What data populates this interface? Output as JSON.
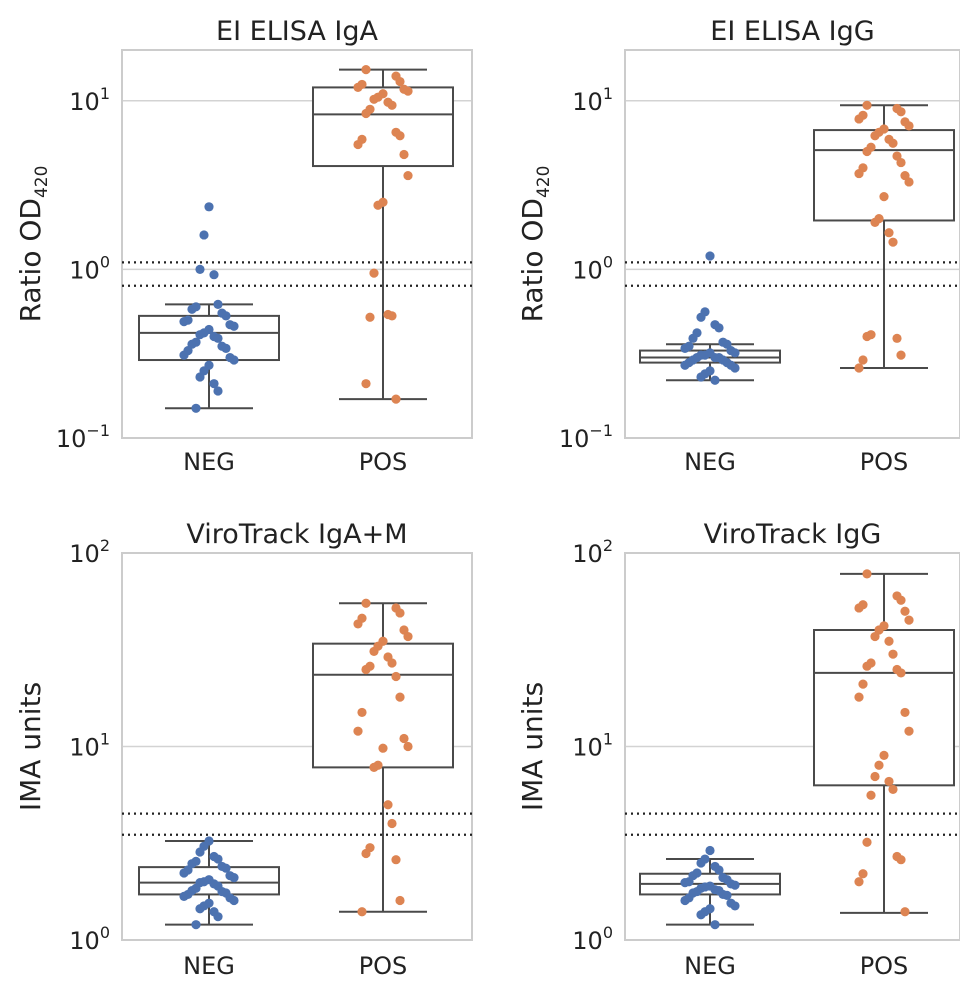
{
  "chart_data": [
    {
      "type": "box",
      "title": "EI ELISA IgA",
      "ylabel": {
        "main": "Ratio OD",
        "sub": "420"
      },
      "yscale": "log",
      "ylim": [
        0.1,
        20
      ],
      "yticks": [
        {
          "base": "10",
          "exp": "−1",
          "value": 0.1
        },
        {
          "base": "10",
          "exp": "0",
          "value": 1
        },
        {
          "base": "10",
          "exp": "1",
          "value": 10
        }
      ],
      "grid": true,
      "cutoffs": [
        1.1,
        0.8
      ],
      "categories": [
        "NEG",
        "POS"
      ],
      "boxes": [
        {
          "category": "NEG",
          "whislo": 0.15,
          "q1": 0.29,
          "median": 0.42,
          "q3": 0.53,
          "whishi": 0.62
        },
        {
          "category": "POS",
          "whislo": 0.17,
          "q1": 4.1,
          "median": 8.3,
          "q3": 12.0,
          "whishi": 15.3
        }
      ],
      "points": [
        {
          "category": "NEG",
          "color": "#4c72b0",
          "values": [
            2.35,
            1.6,
            1.0,
            0.93,
            0.62,
            0.6,
            0.58,
            0.55,
            0.53,
            0.5,
            0.49,
            0.47,
            0.46,
            0.44,
            0.42,
            0.41,
            0.4,
            0.39,
            0.37,
            0.36,
            0.35,
            0.34,
            0.33,
            0.31,
            0.3,
            0.29,
            0.27,
            0.25,
            0.23,
            0.21,
            0.19,
            0.15
          ]
        },
        {
          "category": "POS",
          "color": "#dd8452",
          "values": [
            15.3,
            14.0,
            13.0,
            12.5,
            12.0,
            11.7,
            11.4,
            11.0,
            10.5,
            10.2,
            9.8,
            9.4,
            8.9,
            8.4,
            6.5,
            6.2,
            5.9,
            5.5,
            4.8,
            3.6,
            2.5,
            2.4,
            0.95,
            0.54,
            0.53,
            0.52,
            0.21,
            0.17
          ]
        }
      ]
    },
    {
      "type": "box",
      "title": "EI ELISA IgG",
      "ylabel": {
        "main": "Ratio OD",
        "sub": "420"
      },
      "yscale": "log",
      "ylim": [
        0.1,
        20
      ],
      "yticks": [
        {
          "base": "10",
          "exp": "−1",
          "value": 0.1
        },
        {
          "base": "10",
          "exp": "0",
          "value": 1
        },
        {
          "base": "10",
          "exp": "1",
          "value": 10
        }
      ],
      "grid": true,
      "cutoffs": [
        1.1,
        0.8
      ],
      "categories": [
        "NEG",
        "POS"
      ],
      "boxes": [
        {
          "category": "NEG",
          "whislo": 0.22,
          "q1": 0.28,
          "median": 0.3,
          "q3": 0.33,
          "whishi": 0.36
        },
        {
          "category": "POS",
          "whislo": 0.26,
          "q1": 1.95,
          "median": 5.1,
          "q3": 6.7,
          "whishi": 9.4
        }
      ],
      "points": [
        {
          "category": "NEG",
          "color": "#4c72b0",
          "values": [
            1.2,
            0.56,
            0.52,
            0.47,
            0.45,
            0.42,
            0.39,
            0.37,
            0.36,
            0.35,
            0.34,
            0.33,
            0.32,
            0.32,
            0.31,
            0.31,
            0.3,
            0.3,
            0.3,
            0.29,
            0.29,
            0.28,
            0.28,
            0.27,
            0.27,
            0.26,
            0.25,
            0.24,
            0.23,
            0.22
          ]
        },
        {
          "category": "POS",
          "color": "#dd8452",
          "values": [
            9.4,
            9.0,
            8.6,
            8.2,
            7.8,
            7.5,
            7.1,
            6.8,
            6.5,
            6.2,
            5.9,
            5.6,
            5.3,
            5.0,
            4.7,
            4.3,
            4.0,
            3.7,
            3.6,
            3.3,
            2.7,
            2.0,
            1.9,
            1.65,
            1.45,
            0.41,
            0.4,
            0.39,
            0.31,
            0.29,
            0.26
          ]
        }
      ]
    },
    {
      "type": "box",
      "title": "ViroTrack IgA+M",
      "ylabel": {
        "main": "IMA units",
        "sub": ""
      },
      "yscale": "log",
      "ylim": [
        1,
        100
      ],
      "yticks": [
        {
          "base": "10",
          "exp": "0",
          "value": 1
        },
        {
          "base": "10",
          "exp": "1",
          "value": 10
        },
        {
          "base": "10",
          "exp": "2",
          "value": 100
        }
      ],
      "grid": true,
      "cutoffs": [
        4.5,
        3.5
      ],
      "categories": [
        "NEG",
        "POS"
      ],
      "boxes": [
        {
          "category": "NEG",
          "whislo": 1.2,
          "q1": 1.72,
          "median": 1.98,
          "q3": 2.38,
          "whishi": 3.25
        },
        {
          "category": "POS",
          "whislo": 1.4,
          "q1": 7.8,
          "median": 23.5,
          "q3": 34.0,
          "whishi": 55.0
        }
      ],
      "points": [
        {
          "category": "NEG",
          "color": "#4c72b0",
          "values": [
            3.25,
            3.05,
            2.85,
            2.7,
            2.62,
            2.55,
            2.48,
            2.4,
            2.35,
            2.3,
            2.22,
            2.15,
            2.1,
            2.05,
            2.0,
            1.98,
            1.95,
            1.9,
            1.85,
            1.8,
            1.78,
            1.75,
            1.72,
            1.68,
            1.65,
            1.6,
            1.55,
            1.5,
            1.45,
            1.4,
            1.32,
            1.2
          ]
        },
        {
          "category": "POS",
          "color": "#dd8452",
          "values": [
            55.0,
            52.0,
            49.0,
            46.0,
            43.0,
            40.0,
            37.0,
            35.0,
            33.0,
            31.0,
            29.0,
            27.0,
            26.0,
            25.0,
            23.0,
            18.0,
            15.0,
            12.0,
            11.0,
            10.0,
            9.8,
            8.0,
            7.8,
            5.0,
            4.0,
            3.0,
            2.8,
            2.6,
            1.6,
            1.4
          ]
        }
      ]
    },
    {
      "type": "box",
      "title": "ViroTrack IgG",
      "ylabel": {
        "main": "IMA units",
        "sub": ""
      },
      "yscale": "log",
      "ylim": [
        1,
        100
      ],
      "yticks": [
        {
          "base": "10",
          "exp": "0",
          "value": 1
        },
        {
          "base": "10",
          "exp": "1",
          "value": 10
        },
        {
          "base": "10",
          "exp": "2",
          "value": 100
        }
      ],
      "grid": true,
      "cutoffs": [
        4.5,
        3.5
      ],
      "categories": [
        "NEG",
        "POS"
      ],
      "boxes": [
        {
          "category": "NEG",
          "whislo": 1.2,
          "q1": 1.72,
          "median": 1.95,
          "q3": 2.2,
          "whishi": 2.62
        },
        {
          "category": "POS",
          "whislo": 1.38,
          "q1": 6.3,
          "median": 24.0,
          "q3": 40.0,
          "whishi": 78.0
        }
      ],
      "points": [
        {
          "category": "NEG",
          "color": "#4c72b0",
          "values": [
            2.9,
            2.62,
            2.5,
            2.4,
            2.3,
            2.22,
            2.15,
            2.1,
            2.05,
            2.0,
            1.98,
            1.95,
            1.92,
            1.9,
            1.88,
            1.85,
            1.82,
            1.8,
            1.78,
            1.75,
            1.72,
            1.7,
            1.65,
            1.6,
            1.55,
            1.5,
            1.45,
            1.4,
            1.35,
            1.2
          ]
        },
        {
          "category": "POS",
          "color": "#dd8452",
          "values": [
            78.0,
            60.0,
            57.0,
            54.0,
            52.0,
            50.0,
            45.0,
            42.0,
            40.0,
            37.0,
            35.0,
            30.0,
            27.0,
            26.0,
            25.0,
            24.0,
            21.0,
            18.0,
            15.0,
            12.0,
            9.0,
            8.0,
            7.0,
            6.6,
            6.0,
            5.6,
            3.2,
            2.7,
            2.6,
            2.2,
            2.0,
            1.4
          ]
        }
      ]
    }
  ]
}
